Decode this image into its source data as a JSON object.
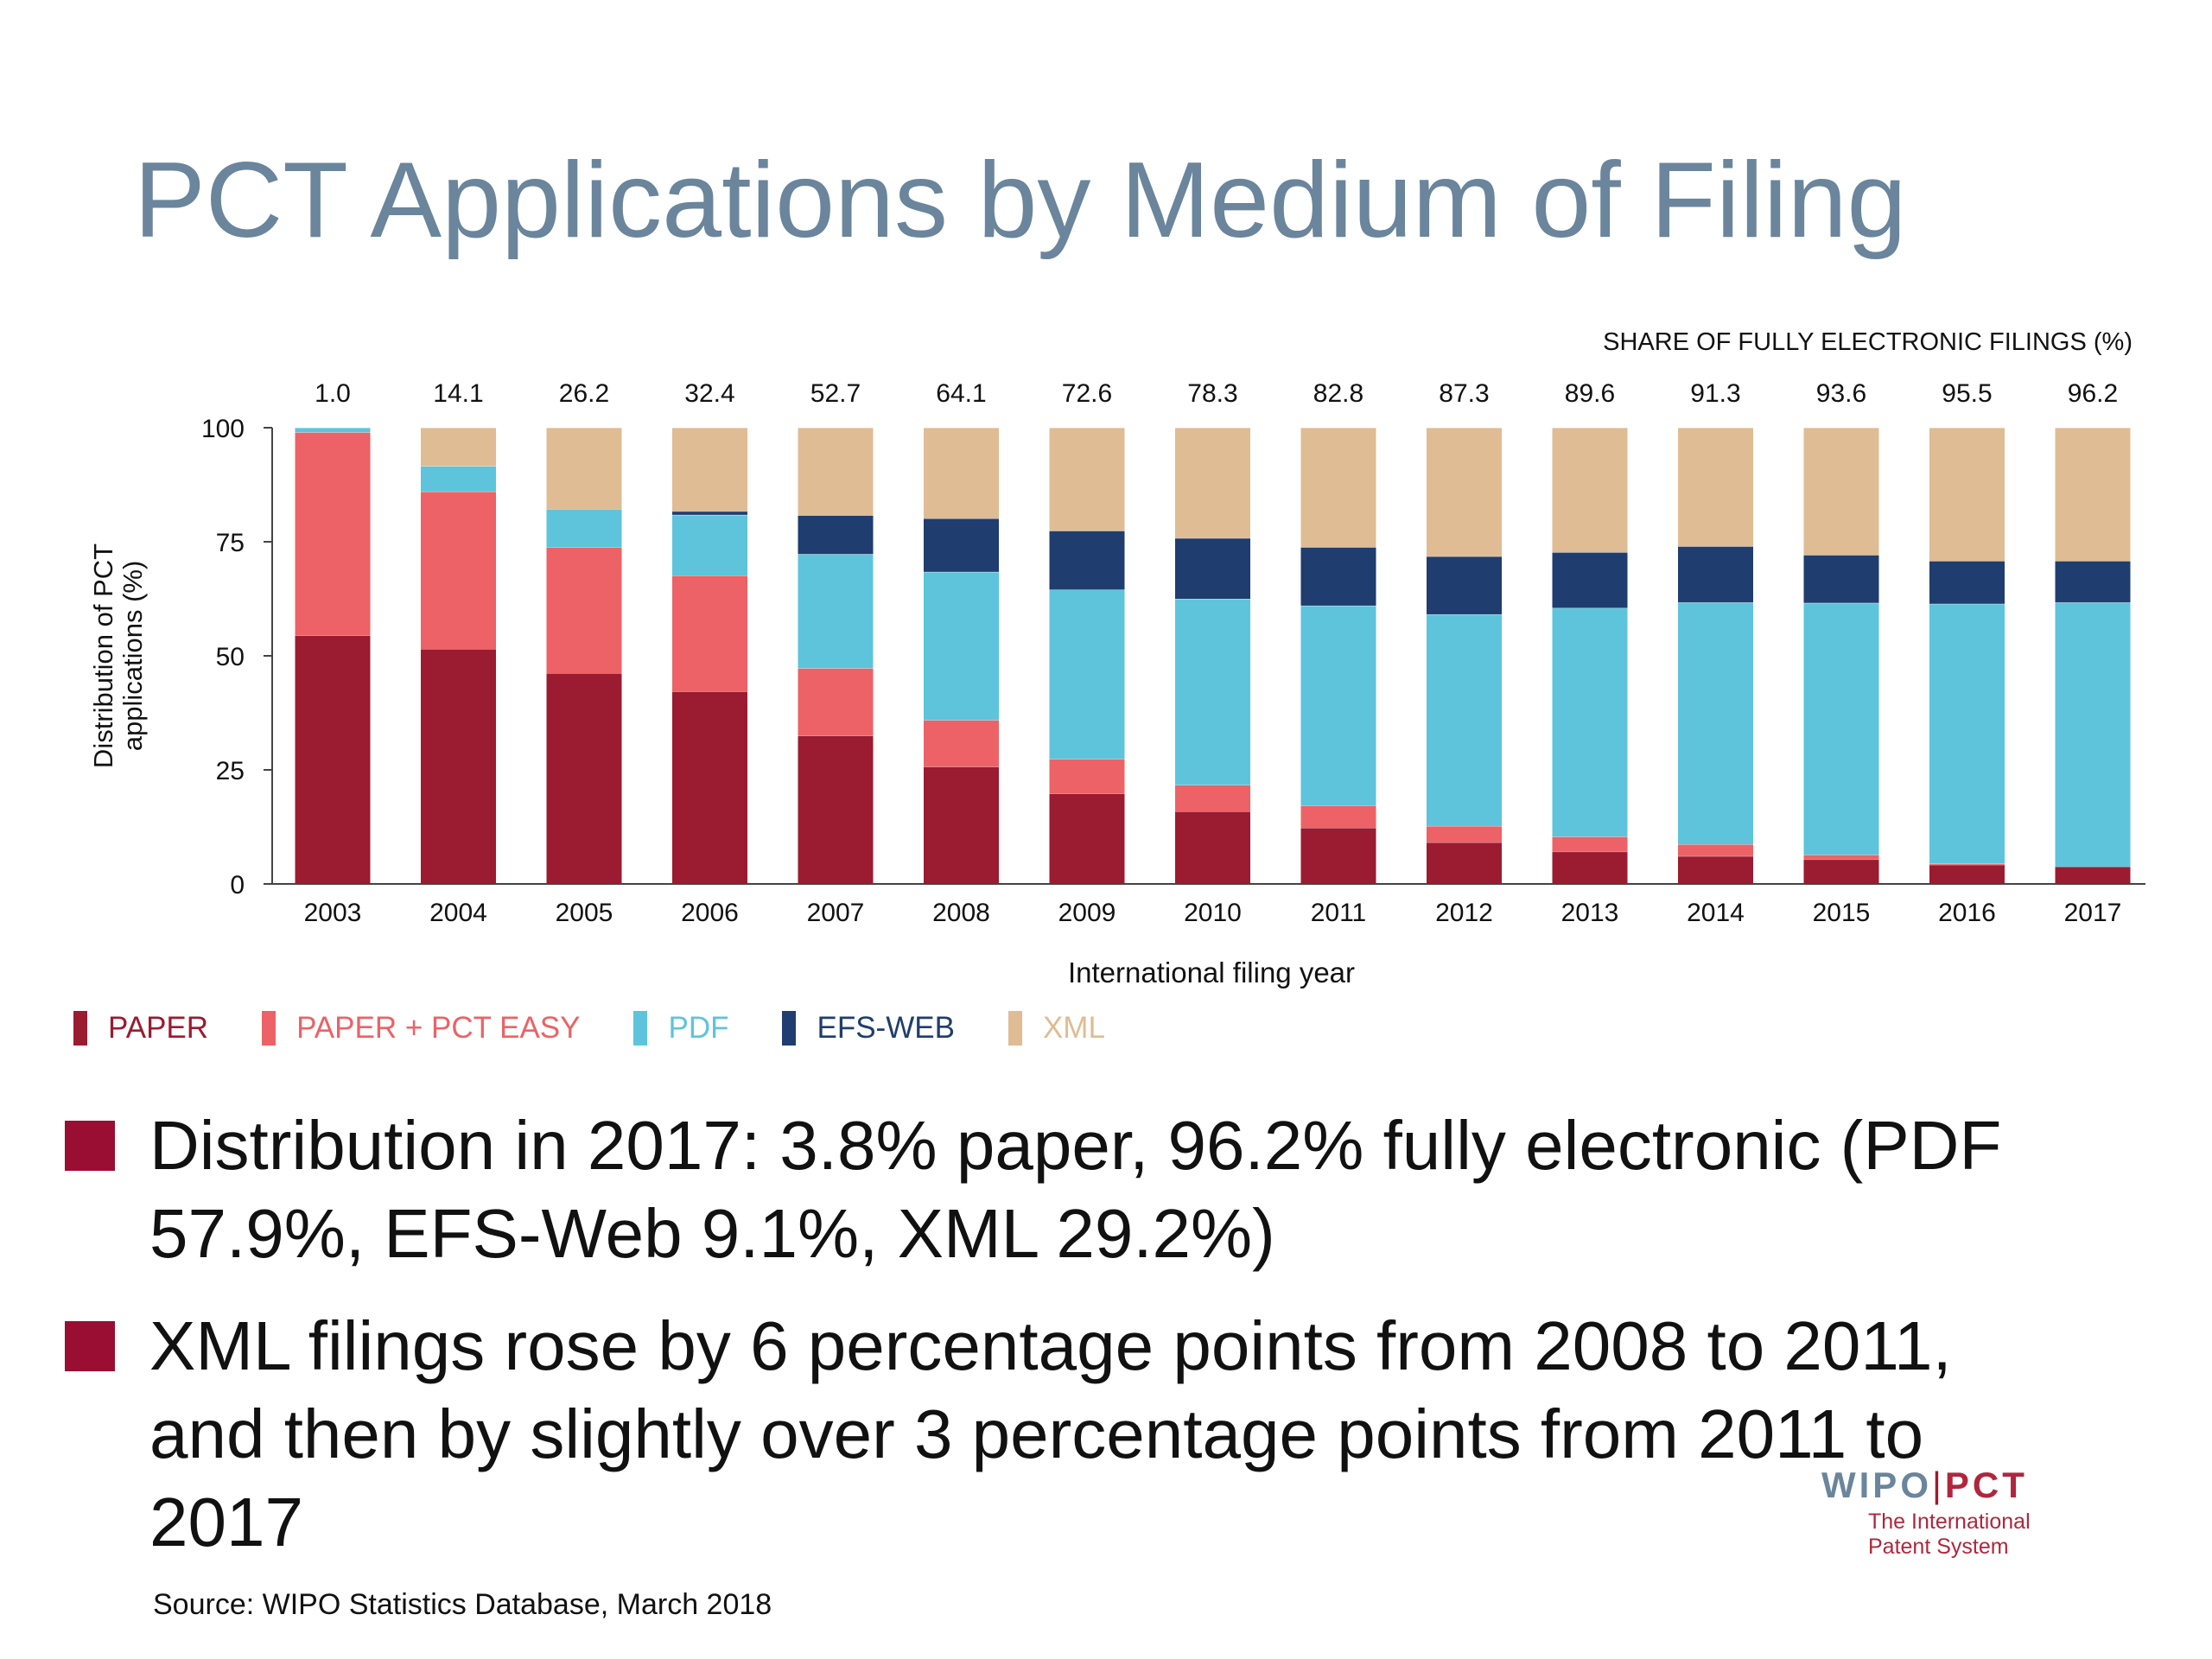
{
  "title": "PCT Applications by Medium of Filing",
  "chart_data": {
    "type": "bar",
    "stacked": true,
    "categories": [
      "2003",
      "2004",
      "2005",
      "2006",
      "2007",
      "2008",
      "2009",
      "2010",
      "2011",
      "2012",
      "2013",
      "2014",
      "2015",
      "2016",
      "2017"
    ],
    "series": [
      {
        "name": "PAPER",
        "color": "#9b1b30",
        "values": [
          54.5,
          51.5,
          46.2,
          42.2,
          32.5,
          25.7,
          19.8,
          15.9,
          12.3,
          9.1,
          7.1,
          6.1,
          5.4,
          4.2,
          3.8
        ]
      },
      {
        "name": "PAPER + PCT EASY",
        "color": "#ec6266",
        "values": [
          44.5,
          34.5,
          27.6,
          25.4,
          14.8,
          10.2,
          7.6,
          5.8,
          4.9,
          3.6,
          3.3,
          2.6,
          1.0,
          0.3,
          0.0
        ]
      },
      {
        "name": "PDF",
        "color": "#5dc4dc",
        "values": [
          1.0,
          5.6,
          8.4,
          13.3,
          25.0,
          32.5,
          37.1,
          40.8,
          43.8,
          46.4,
          50.1,
          53.0,
          55.2,
          56.9,
          57.9
        ]
      },
      {
        "name": "EFS-WEB",
        "color": "#1f3d6e",
        "values": [
          0.0,
          0.0,
          0.0,
          0.8,
          8.5,
          11.7,
          12.9,
          13.3,
          12.8,
          12.7,
          12.2,
          12.3,
          10.5,
          9.4,
          9.1
        ]
      },
      {
        "name": "XML",
        "color": "#dfbc94",
        "values": [
          0.0,
          8.4,
          17.8,
          18.3,
          19.2,
          19.9,
          22.6,
          24.2,
          26.2,
          28.2,
          27.3,
          26.0,
          27.9,
          29.2,
          29.2
        ]
      }
    ],
    "top_labels_title": "SHARE OF FULLY ELECTRONIC FILINGS (%)",
    "top_labels": [
      "1.0",
      "14.1",
      "26.2",
      "32.4",
      "52.7",
      "64.1",
      "72.6",
      "78.3",
      "82.8",
      "87.3",
      "89.6",
      "91.3",
      "93.6",
      "95.5",
      "96.2"
    ],
    "ylabel_lines": [
      "Distribution of PCT",
      "applications (%)"
    ],
    "xlabel": "International filing year",
    "ylim": [
      0,
      100
    ],
    "yticks": [
      0,
      25,
      50,
      75,
      100
    ],
    "grid": false,
    "legend_position": "bottom-left"
  },
  "bullets": [
    "Distribution in 2017:  3.8% paper, 96.2% fully electronic (PDF 57.9%, EFS-Web 9.1%, XML 29.2%)",
    "XML filings rose by 6 percentage points from 2008 to 2011, and then by slightly over 3 percentage points from 2011 to 2017"
  ],
  "bullet_color": "#9b0e33",
  "source": "Source:  WIPO Statistics Database, March 2018",
  "logo": {
    "wipo": "WIPO",
    "separator": "|",
    "pct": "PCT",
    "subtitle_line1": "The International",
    "subtitle_line2": "Patent System"
  }
}
